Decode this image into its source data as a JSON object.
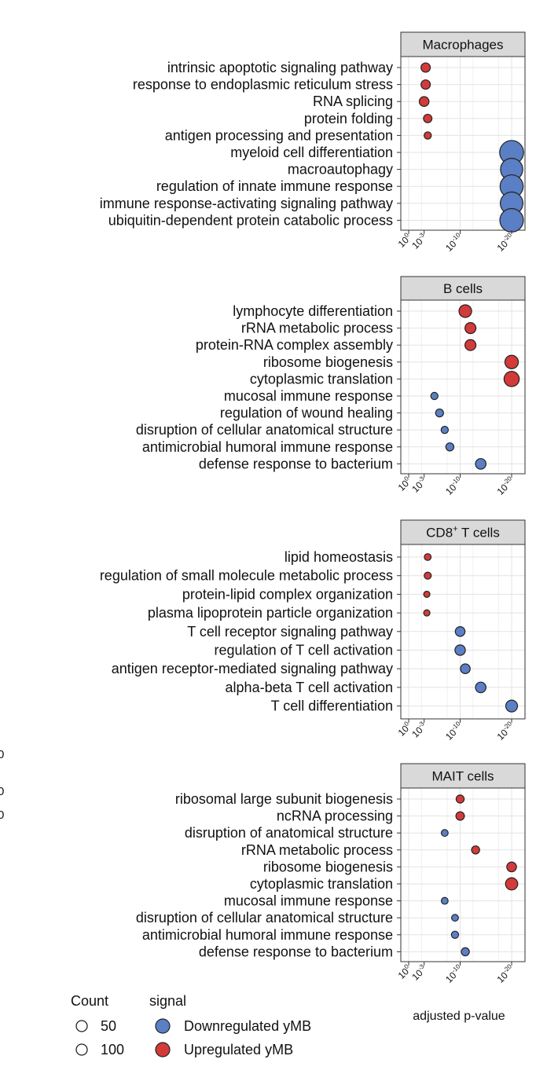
{
  "chart_data": {
    "type": "scatter",
    "xlabel": "adjusted p-value",
    "x_scale": "log",
    "x_ticks": [
      {
        "value": 1,
        "mantissa": "10",
        "exponent": "0"
      },
      {
        "value": 0.001,
        "mantissa": "10",
        "exponent": "-3"
      },
      {
        "value": 1e-10,
        "mantissa": "10",
        "exponent": "-10"
      },
      {
        "value": 1e-20,
        "mantissa": "10",
        "exponent": "-20"
      }
    ],
    "xlim": [
      1,
      1e-20
    ],
    "grid": true,
    "colors": {
      "Downregulated yMB": "#5b7fc4",
      "Upregulated yMB": "#d33a3a"
    },
    "panels": [
      {
        "title": "Macrophages",
        "title_sup": "",
        "terms": [
          {
            "term": "intrinsic apoptotic signaling pathway",
            "p": 0.0005,
            "count": 55,
            "signal": "Upregulated yMB"
          },
          {
            "term": "response to endoplasmic reticulum stress",
            "p": 0.0005,
            "count": 55,
            "signal": "Upregulated yMB"
          },
          {
            "term": "RNA splicing",
            "p": 0.001,
            "count": 60,
            "signal": "Upregulated yMB"
          },
          {
            "term": "protein folding",
            "p": 0.0002,
            "count": 45,
            "signal": "Upregulated yMB"
          },
          {
            "term": "antigen processing and presentation",
            "p": 0.0002,
            "count": 30,
            "signal": "Upregulated yMB"
          },
          {
            "term": "myeloid cell differentiation",
            "p": 1e-20,
            "count": 230,
            "signal": "Downregulated yMB"
          },
          {
            "term": "macroautophagy",
            "p": 1e-20,
            "count": 210,
            "signal": "Downregulated yMB"
          },
          {
            "term": "regulation of innate immune response",
            "p": 1e-20,
            "count": 220,
            "signal": "Downregulated yMB"
          },
          {
            "term": "immune response-activating signaling pathway",
            "p": 1e-20,
            "count": 215,
            "signal": "Downregulated yMB"
          },
          {
            "term": "ubiquitin-dependent protein catabolic process",
            "p": 1e-20,
            "count": 225,
            "signal": "Downregulated yMB"
          }
        ]
      },
      {
        "title": "B cells",
        "title_sup": "",
        "terms": [
          {
            "term": "lymphocyte differentiation",
            "p": 1e-11,
            "count": 95,
            "signal": "Upregulated yMB"
          },
          {
            "term": "rRNA metabolic process",
            "p": 1e-12,
            "count": 75,
            "signal": "Upregulated yMB"
          },
          {
            "term": "protein-RNA complex assembly",
            "p": 1e-12,
            "count": 75,
            "signal": "Upregulated yMB"
          },
          {
            "term": "ribosome biogenesis",
            "p": 1e-20,
            "count": 105,
            "signal": "Upregulated yMB"
          },
          {
            "term": "cytoplasmic translation",
            "p": 1e-20,
            "count": 125,
            "signal": "Upregulated yMB"
          },
          {
            "term": "mucosal immune response",
            "p": 1e-05,
            "count": 30,
            "signal": "Downregulated yMB"
          },
          {
            "term": "regulation of wound healing",
            "p": 1e-06,
            "count": 38,
            "signal": "Downregulated yMB"
          },
          {
            "term": "disruption of cellular anatomical structure",
            "p": 1e-07,
            "count": 30,
            "signal": "Downregulated yMB"
          },
          {
            "term": "antimicrobial humoral immune response",
            "p": 1e-08,
            "count": 40,
            "signal": "Downregulated yMB"
          },
          {
            "term": "defense response to bacterium",
            "p": 1e-14,
            "count": 70,
            "signal": "Downregulated yMB"
          }
        ]
      },
      {
        "title": "CD8",
        "title_sup": "+",
        "title_suffix": " T cells",
        "terms": [
          {
            "term": "lipid homeostasis",
            "p": 0.0002,
            "count": 25,
            "signal": "Upregulated yMB"
          },
          {
            "term": "regulation of small molecule metabolic process",
            "p": 0.0002,
            "count": 28,
            "signal": "Upregulated yMB"
          },
          {
            "term": "protein-lipid complex organization",
            "p": 0.0003,
            "count": 18,
            "signal": "Upregulated yMB"
          },
          {
            "term": "plasma lipoprotein particle organization",
            "p": 0.0003,
            "count": 18,
            "signal": "Upregulated yMB"
          },
          {
            "term": "T cell receptor signaling pathway",
            "p": 1e-10,
            "count": 60,
            "signal": "Downregulated yMB"
          },
          {
            "term": "regulation of T cell activation",
            "p": 1e-10,
            "count": 68,
            "signal": "Downregulated yMB"
          },
          {
            "term": "antigen receptor-mediated signaling pathway",
            "p": 1e-11,
            "count": 60,
            "signal": "Downregulated yMB"
          },
          {
            "term": "alpha-beta T cell activation",
            "p": 1e-14,
            "count": 70,
            "signal": "Downregulated yMB"
          },
          {
            "term": "T cell differentiation",
            "p": 1e-20,
            "count": 85,
            "signal": "Downregulated yMB"
          }
        ]
      },
      {
        "title": "MAIT cells",
        "title_sup": "",
        "terms": [
          {
            "term": "ribosomal large subunit biogenesis",
            "p": 1e-10,
            "count": 40,
            "signal": "Upregulated yMB"
          },
          {
            "term": "ncRNA processing",
            "p": 1e-10,
            "count": 45,
            "signal": "Upregulated yMB"
          },
          {
            "term": "disruption of anatomical structure",
            "p": 1e-07,
            "count": 25,
            "signal": "Downregulated yMB"
          },
          {
            "term": "rRNA metabolic process",
            "p": 1e-13,
            "count": 40,
            "signal": "Upregulated yMB"
          },
          {
            "term": "ribosome biogenesis",
            "p": 1e-20,
            "count": 60,
            "signal": "Upregulated yMB"
          },
          {
            "term": "cytoplasmic translation",
            "p": 1e-20,
            "count": 90,
            "signal": "Upregulated yMB"
          },
          {
            "term": "mucosal immune response",
            "p": 1e-07,
            "count": 25,
            "signal": "Downregulated yMB"
          },
          {
            "term": "disruption of cellular anatomical structure",
            "p": 1e-09,
            "count": 25,
            "signal": "Downregulated yMB"
          },
          {
            "term": "antimicrobial humoral immune response",
            "p": 1e-09,
            "count": 30,
            "signal": "Downregulated yMB"
          },
          {
            "term": "defense response to bacterium",
            "p": 1e-11,
            "count": 40,
            "signal": "Downregulated yMB"
          }
        ]
      }
    ],
    "legend": {
      "size_title": "Count",
      "size_items": [
        {
          "label": "50",
          "value": 50
        },
        {
          "label": "100",
          "value": 100
        }
      ],
      "color_title": "signal",
      "color_items": [
        "Downregulated yMB",
        "Upregulated yMB"
      ]
    },
    "edge_fragments": [
      "0",
      "0",
      "0"
    ]
  }
}
